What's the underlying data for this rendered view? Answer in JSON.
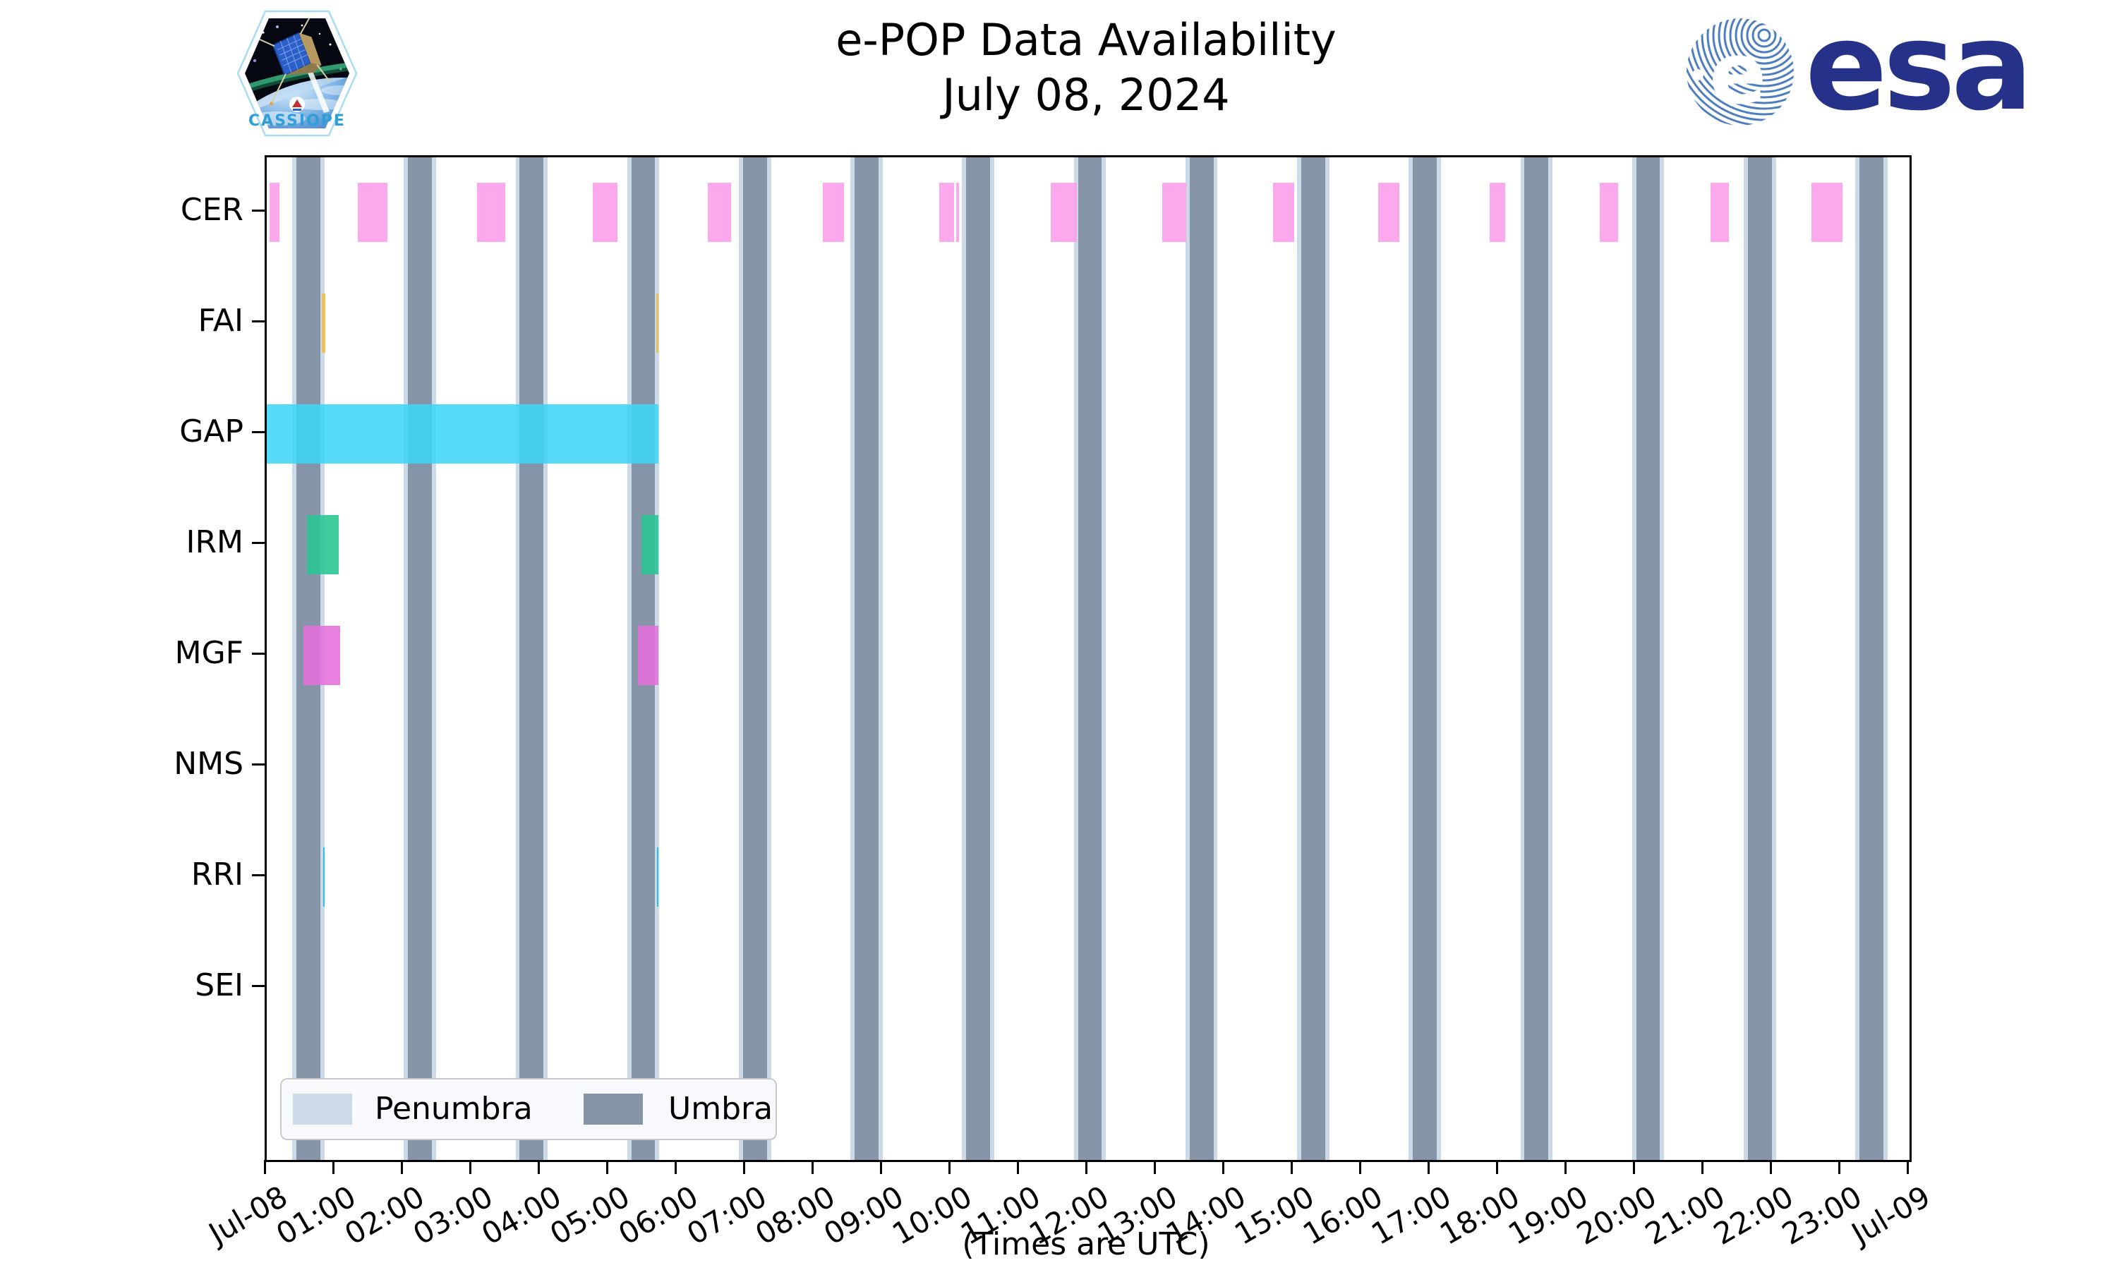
{
  "header": {
    "title": "e-POP Data Availability",
    "subtitle": "July 08, 2024",
    "cassiope_patch_text": "CASSIOPE",
    "esa_logo_text": "esa"
  },
  "x_axis_caption": "(Times are UTC)",
  "legend": {
    "entries": [
      {
        "label": "Penumbra",
        "color": "#ccdae8"
      },
      {
        "label": "Umbra",
        "color": "#8594a6"
      }
    ]
  },
  "chart_data": {
    "type": "bar",
    "subtype": "gantt-availability",
    "title": "e-POP Data Availability",
    "subtitle": "July 08, 2024",
    "xlabel": "(Times are UTC)",
    "x_unit": "hours UTC on 2024-07-08",
    "xlim": [
      0,
      24
    ],
    "grid": false,
    "x_ticks": [
      "Jul-08",
      "01:00",
      "02:00",
      "03:00",
      "04:00",
      "05:00",
      "06:00",
      "07:00",
      "08:00",
      "09:00",
      "10:00",
      "11:00",
      "12:00",
      "13:00",
      "14:00",
      "15:00",
      "16:00",
      "17:00",
      "18:00",
      "19:00",
      "20:00",
      "21:00",
      "22:00",
      "23:00",
      "Jul-09"
    ],
    "rows": [
      {
        "label": "CER",
        "color": "#FA9DE9",
        "intervals": [
          [
            0.04,
            0.19
          ],
          [
            1.33,
            1.76
          ],
          [
            3.07,
            3.48
          ],
          [
            4.76,
            5.12
          ],
          [
            6.44,
            6.78
          ],
          [
            8.12,
            8.43
          ],
          [
            9.82,
            10.04
          ],
          [
            10.07,
            10.11
          ],
          [
            11.45,
            11.84
          ],
          [
            13.08,
            13.43
          ],
          [
            14.7,
            15.01
          ],
          [
            16.24,
            16.55
          ],
          [
            17.87,
            18.09
          ],
          [
            19.47,
            19.74
          ],
          [
            21.09,
            21.36
          ],
          [
            22.57,
            23.02
          ]
        ]
      },
      {
        "label": "FAI",
        "color": "#F4BB46",
        "intervals": [
          [
            0.8,
            0.86
          ],
          [
            5.69,
            5.72
          ]
        ]
      },
      {
        "label": "GAP",
        "color": "#3DD5F6",
        "intervals": [
          [
            0.0,
            5.72
          ]
        ]
      },
      {
        "label": "IRM",
        "color": "#28C694",
        "intervals": [
          [
            0.59,
            1.05
          ],
          [
            5.47,
            5.72
          ]
        ]
      },
      {
        "label": "MGF",
        "color": "#E56EDC",
        "intervals": [
          [
            0.54,
            1.07
          ],
          [
            5.42,
            5.72
          ]
        ]
      },
      {
        "label": "NMS",
        "color": "#999999",
        "intervals": []
      },
      {
        "label": "RRI",
        "color": "#0FBFE8",
        "intervals": [
          [
            0.82,
            0.85
          ],
          [
            5.7,
            5.72
          ]
        ]
      },
      {
        "label": "SEI",
        "color": "#999999",
        "intervals": []
      }
    ],
    "shading": {
      "umbra": {
        "label": "Umbra",
        "color": "#8594a6",
        "half_width_hours": 0.175,
        "centers": [
          0.608,
          2.239,
          3.87,
          5.501,
          7.132,
          8.763,
          10.394,
          12.025,
          13.657,
          15.288,
          16.919,
          18.55,
          20.181,
          21.812,
          23.443
        ]
      },
      "penumbra": {
        "label": "Penumbra",
        "color": "#ccdae8",
        "half_width_hours": 0.06
      }
    },
    "legend_position": "lower left"
  }
}
